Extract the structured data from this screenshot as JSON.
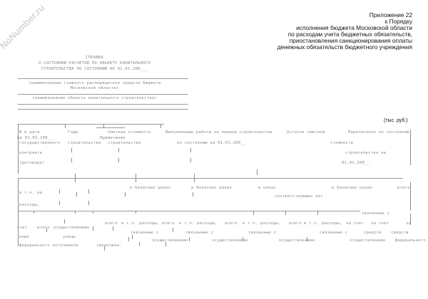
{
  "watermark": "NoNumber.ru",
  "header": {
    "lines": [
      "Приложение 22",
      "к Порядку",
      "исполнения бюджета Московской области",
      "по расходам учета бюджетных обязательств,",
      "приостановления санкционирования оплаты",
      "денежных обязательств бюджетного учреждения"
    ]
  },
  "title": {
    "lines": [
      "СПРАВКА",
      "О СОСТОЯНИИ РАСЧЕТОВ ПО ОБЪЕКТУ КАПИТАЛЬНОГО",
      "СТРОИТЕЛЬСТВА ПО СОСТОЯНИЮ НА 01.01.200___"
    ]
  },
  "captions": {
    "manager": [
      "(наименование главного распорядителя средств бюджета",
      "Московской области)"
    ],
    "object": "(наименование объекта капитального строительства)"
  },
  "unit": "(тыс. руб.)",
  "table": {
    "fragments": [
      "N и дата",
      "Годы",
      "Сметная стоимость",
      "Выполненные работы за период строительства",
      "Остаток сметной",
      "Перечислено по состоянию",
      "на 01.01.200__",
      "Примечание",
      "государственного",
      "строительства",
      "строительства",
      "по состоянию на 01.01.200__",
      "стоимости",
      "контракта",
      "строительства на",
      "(договора)",
      "01.01.200__",
      "в базисных ценах",
      "в базисных ценах",
      "в ценах",
      "в базисных ценах",
      "всего",
      "в т.ч. на",
      "соответствующих лет",
      "расходы,",
      "связанные с",
      "всего",
      "в т.ч. расходы,",
      "всего",
      "в т.ч. расходы,",
      "всего",
      "в т.ч. расходы,",
      "всего",
      "в т.ч. расходы,",
      "за счет",
      "за счет",
      "за",
      "счет",
      "итого",
      "осуществлением",
      "связанные с",
      "связанные с",
      "связанные с",
      "связанные с",
      "средств",
      "средств",
      "иных",
      "улицы",
      "осуществлением",
      "осуществлением",
      "осуществлением",
      "осуществлением",
      "федерального",
      "федерального",
      "источников",
      "заказчика-"
    ]
  }
}
